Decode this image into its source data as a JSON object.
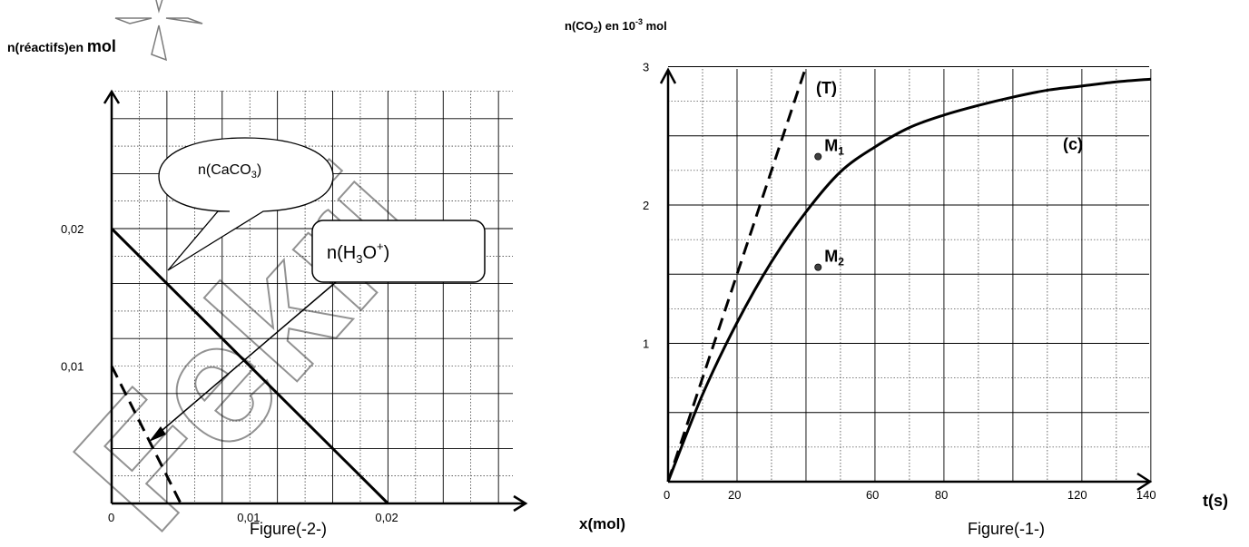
{
  "watermark": {
    "text": "Fekri",
    "color": "#3a3a3a"
  },
  "colors": {
    "ink": "#000000",
    "grid": "#000000",
    "dot": "#404040"
  },
  "chart_data": [
    {
      "type": "line",
      "figure_caption": "Figure(-2-)",
      "ylabel": "n(réactifs)en mol",
      "xlabel": "x(mol)",
      "xlim": [
        0,
        0.029
      ],
      "ylim": [
        0,
        0.03
      ],
      "x_ticks": [
        {
          "v": 0,
          "label": "0"
        },
        {
          "v": 0.01,
          "label": "0,01"
        },
        {
          "v": 0.02,
          "label": "0,02"
        }
      ],
      "y_ticks": [
        {
          "v": 0.01,
          "label": "0,01"
        },
        {
          "v": 0.02,
          "label": "0,02"
        }
      ],
      "grid": true,
      "series": [
        {
          "name": "n(CaCO₃)",
          "style": "solid",
          "points": [
            [
              0,
              0.02
            ],
            [
              0.02,
              0
            ]
          ]
        },
        {
          "name": "n(H₃O⁺)",
          "style": "dashed",
          "points": [
            [
              0,
              0.01
            ],
            [
              0.005,
              0
            ]
          ]
        }
      ],
      "annotations": [
        {
          "text": "n(CaCO₃)",
          "shape": "speech-bubble"
        },
        {
          "text": "n(H₃O⁺)",
          "shape": "rounded-box"
        }
      ]
    },
    {
      "type": "line",
      "figure_caption": "Figure(-1-)",
      "ylabel": "n(CO₂) en 10⁻³ mol",
      "xlabel": "t(s)",
      "xlim": [
        0,
        140
      ],
      "ylim": [
        0,
        3
      ],
      "x_ticks": [
        {
          "v": 0,
          "label": "0"
        },
        {
          "v": 20,
          "label": "20"
        },
        {
          "v": 60,
          "label": "60"
        },
        {
          "v": 80,
          "label": "80"
        },
        {
          "v": 120,
          "label": "120"
        },
        {
          "v": 140,
          "label": "140"
        }
      ],
      "y_ticks": [
        {
          "v": 1,
          "label": "1"
        },
        {
          "v": 2,
          "label": "2"
        },
        {
          "v": 3,
          "label": "3"
        }
      ],
      "grid": true,
      "curve_label": "(c)",
      "curve": [
        [
          0,
          0
        ],
        [
          10,
          0.63
        ],
        [
          20,
          1.15
        ],
        [
          30,
          1.59
        ],
        [
          40,
          1.95
        ],
        [
          50,
          2.24
        ],
        [
          60,
          2.42
        ],
        [
          70,
          2.56
        ],
        [
          80,
          2.65
        ],
        [
          90,
          2.72
        ],
        [
          100,
          2.78
        ],
        [
          110,
          2.83
        ],
        [
          120,
          2.86
        ],
        [
          130,
          2.89
        ],
        [
          140,
          2.91
        ]
      ],
      "tangent": {
        "label": "(T)",
        "style": "dashed",
        "points": [
          [
            0,
            0
          ],
          [
            40,
            3
          ]
        ]
      },
      "points": [
        {
          "label": "M",
          "sub": "1",
          "x": 43.5,
          "y": 2.35
        },
        {
          "label": "M",
          "sub": "2",
          "x": 43.5,
          "y": 1.55
        }
      ]
    }
  ]
}
